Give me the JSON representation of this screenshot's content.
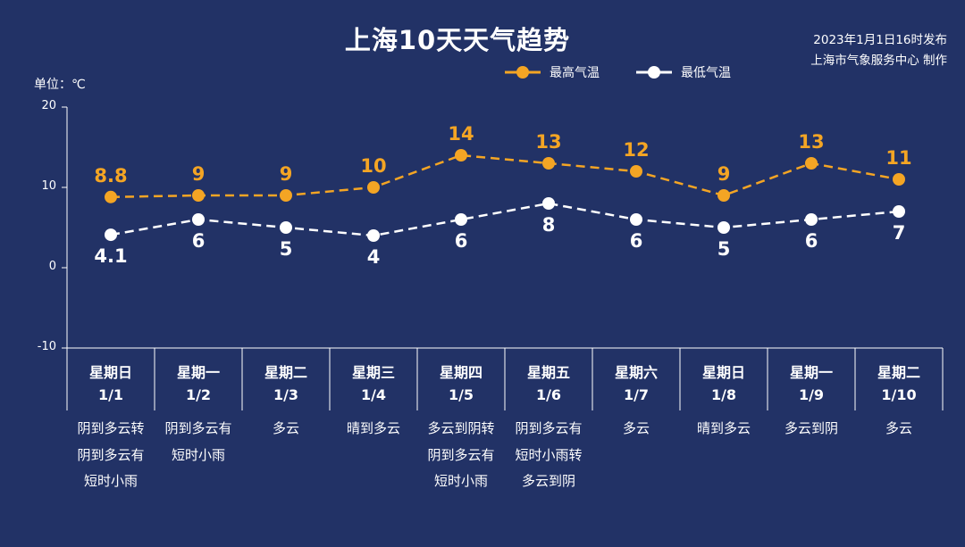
{
  "chart_data": {
    "type": "line",
    "title": "上海10天天气趋势",
    "publish_info": [
      "2023年1月1日16时发布",
      "上海市气象服务中心 制作"
    ],
    "ylabel": "单位：℃",
    "ylim": [
      -10,
      20
    ],
    "yticks": [
      20,
      10,
      0,
      -10
    ],
    "legend_position": "top-right",
    "days": [
      {
        "weekday": "星期日",
        "date": "1/1",
        "weather": [
          "阴到多云转",
          "阴到多云有",
          "短时小雨"
        ]
      },
      {
        "weekday": "星期一",
        "date": "1/2",
        "weather": [
          "阴到多云有",
          "短时小雨"
        ]
      },
      {
        "weekday": "星期二",
        "date": "1/3",
        "weather": [
          "多云"
        ]
      },
      {
        "weekday": "星期三",
        "date": "1/4",
        "weather": [
          "晴到多云"
        ]
      },
      {
        "weekday": "星期四",
        "date": "1/5",
        "weather": [
          "多云到阴转",
          "阴到多云有",
          "短时小雨"
        ]
      },
      {
        "weekday": "星期五",
        "date": "1/6",
        "weather": [
          "阴到多云有",
          "短时小雨转",
          "多云到阴"
        ]
      },
      {
        "weekday": "星期六",
        "date": "1/7",
        "weather": [
          "多云"
        ]
      },
      {
        "weekday": "星期日",
        "date": "1/8",
        "weather": [
          "晴到多云"
        ]
      },
      {
        "weekday": "星期一",
        "date": "1/9",
        "weather": [
          "多云到阴"
        ]
      },
      {
        "weekday": "星期二",
        "date": "1/10",
        "weather": [
          "多云"
        ]
      }
    ],
    "series": [
      {
        "name": "最高气温",
        "color": "#f4a524",
        "values": [
          8.8,
          9,
          9,
          10,
          14,
          13,
          12,
          9,
          13,
          11
        ],
        "labels": [
          "8.8",
          "9",
          "9",
          "10",
          "14",
          "13",
          "12",
          "9",
          "13",
          "11"
        ]
      },
      {
        "name": "最低气温",
        "color": "#ffffff",
        "values": [
          4.1,
          6,
          5,
          4,
          6,
          8,
          6,
          5,
          6,
          7
        ],
        "labels": [
          "4.1",
          "6",
          "5",
          "4",
          "6",
          "8",
          "6",
          "5",
          "6",
          "7"
        ]
      }
    ]
  }
}
